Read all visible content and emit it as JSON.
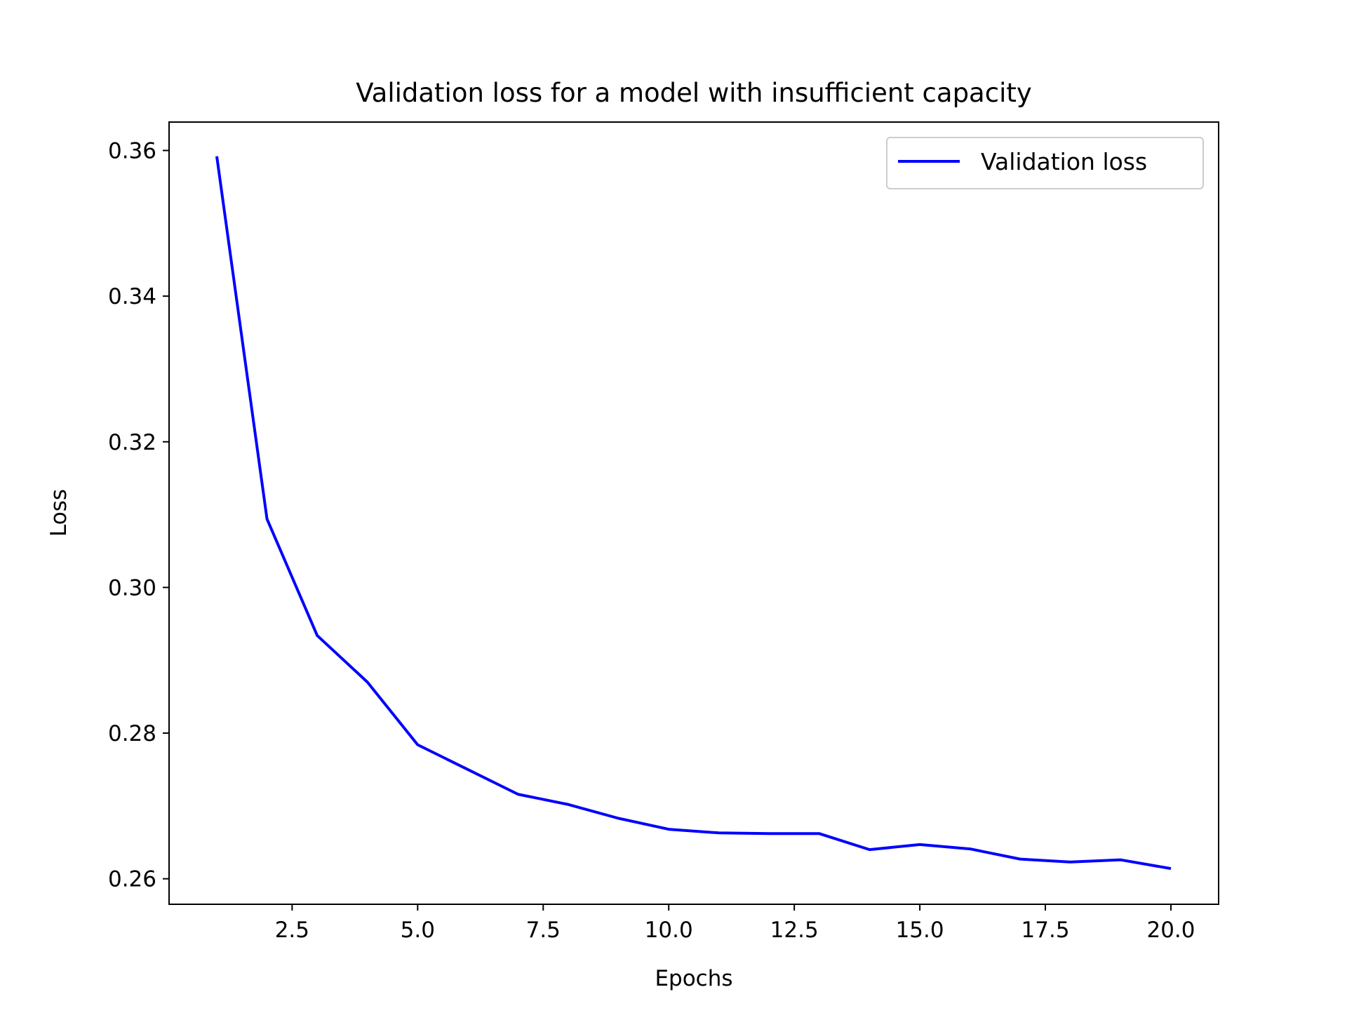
{
  "chart_data": {
    "type": "line",
    "title": "Validation loss for a model with insufficient capacity",
    "xlabel": "Epochs",
    "ylabel": "Loss",
    "xlim": [
      0.05,
      20.95
    ],
    "ylim": [
      0.2565,
      0.3639
    ],
    "xticks": [
      2.5,
      5.0,
      7.5,
      10.0,
      12.5,
      15.0,
      17.5,
      20.0
    ],
    "xtick_labels": [
      "2.5",
      "5.0",
      "7.5",
      "10.0",
      "12.5",
      "15.0",
      "17.5",
      "20.0"
    ],
    "yticks": [
      0.26,
      0.28,
      0.3,
      0.32,
      0.34,
      0.36
    ],
    "ytick_labels": [
      "0.26",
      "0.28",
      "0.30",
      "0.32",
      "0.34",
      "0.36"
    ],
    "grid": false,
    "legend_position": "top-right",
    "series": [
      {
        "name": "Validation loss",
        "color": "#0000ff",
        "x": [
          1,
          2,
          3,
          4,
          5,
          6,
          7,
          8,
          9,
          10,
          11,
          12,
          13,
          14,
          15,
          16,
          17,
          18,
          19,
          20
        ],
        "y": [
          0.3592,
          0.3094,
          0.2934,
          0.287,
          0.2784,
          0.275,
          0.2716,
          0.2702,
          0.2683,
          0.2668,
          0.2663,
          0.2662,
          0.2662,
          0.264,
          0.2647,
          0.2641,
          0.2627,
          0.2623,
          0.2626,
          0.2614
        ]
      }
    ]
  }
}
